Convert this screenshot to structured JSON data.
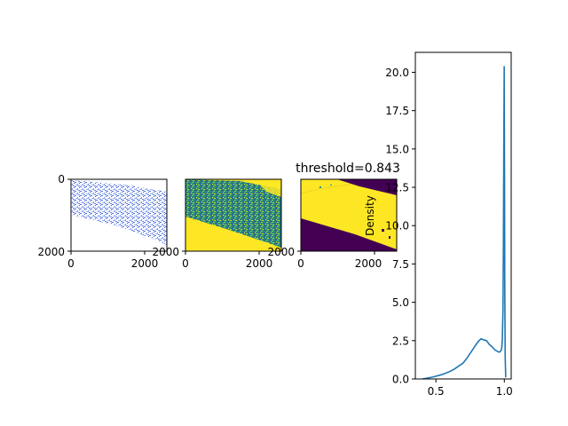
{
  "colors": {
    "line": "#1f77b4",
    "viridis_dark": "#440154",
    "viridis_yellow": "#fde725",
    "viridis_green": "#21918c",
    "sample_blue": "#4c6fe0"
  },
  "chart_data": [
    {
      "type": "heatmap",
      "panel": "image-1",
      "colormap": "blue-on-white",
      "xlim": [
        0,
        2600
      ],
      "ylim": [
        2050,
        0
      ],
      "x_ticks": [
        "0",
        "2000"
      ],
      "y_ticks": [
        "0",
        "2000"
      ]
    },
    {
      "type": "heatmap",
      "panel": "image-2",
      "colormap": "viridis",
      "xlim": [
        0,
        2600
      ],
      "ylim": [
        2050,
        0
      ],
      "x_ticks": [
        "0",
        "2000"
      ],
      "y_ticks": [
        "2000"
      ]
    },
    {
      "type": "heatmap",
      "panel": "image-3",
      "colormap": "binary-viridis",
      "title": "threshold=0.843",
      "xlim": [
        0,
        2600
      ],
      "ylim": [
        2050,
        0
      ],
      "x_ticks": [
        "0",
        "2000"
      ],
      "y_ticks": [
        "2000"
      ]
    },
    {
      "type": "line",
      "panel": "density",
      "ylabel": "Density",
      "xlim": [
        0.35,
        1.05
      ],
      "ylim": [
        0,
        21.3
      ],
      "x_ticks": [
        0.5,
        1.0
      ],
      "x_tick_labels": [
        "0.5",
        "1.0"
      ],
      "y_ticks": [
        0,
        2.5,
        5,
        7.5,
        10,
        12.5,
        15,
        17.5,
        20
      ],
      "y_tick_labels": [
        "0.0",
        "2.5",
        "5.0",
        "7.5",
        "10.0",
        "12.5",
        "15.0",
        "17.5",
        "20.0"
      ],
      "series": [
        {
          "x": [
            0.4,
            0.42,
            0.45,
            0.48,
            0.5,
            0.53,
            0.56,
            0.6,
            0.63,
            0.66,
            0.7,
            0.73,
            0.76,
            0.79,
            0.81,
            0.83,
            0.85,
            0.87,
            0.89,
            0.91,
            0.93,
            0.95,
            0.96,
            0.97,
            0.98,
            0.985,
            0.99,
            0.993,
            0.996,
            0.999,
            1.001,
            1.003,
            1.006,
            1.01
          ],
          "y": [
            0.0,
            0.03,
            0.08,
            0.13,
            0.18,
            0.25,
            0.33,
            0.48,
            0.62,
            0.8,
            1.05,
            1.4,
            1.8,
            2.2,
            2.45,
            2.62,
            2.55,
            2.5,
            2.25,
            2.1,
            1.9,
            1.8,
            1.75,
            1.78,
            1.95,
            2.5,
            4.5,
            8.5,
            15.0,
            20.4,
            14.0,
            6.5,
            1.5,
            0.1
          ]
        }
      ]
    }
  ]
}
